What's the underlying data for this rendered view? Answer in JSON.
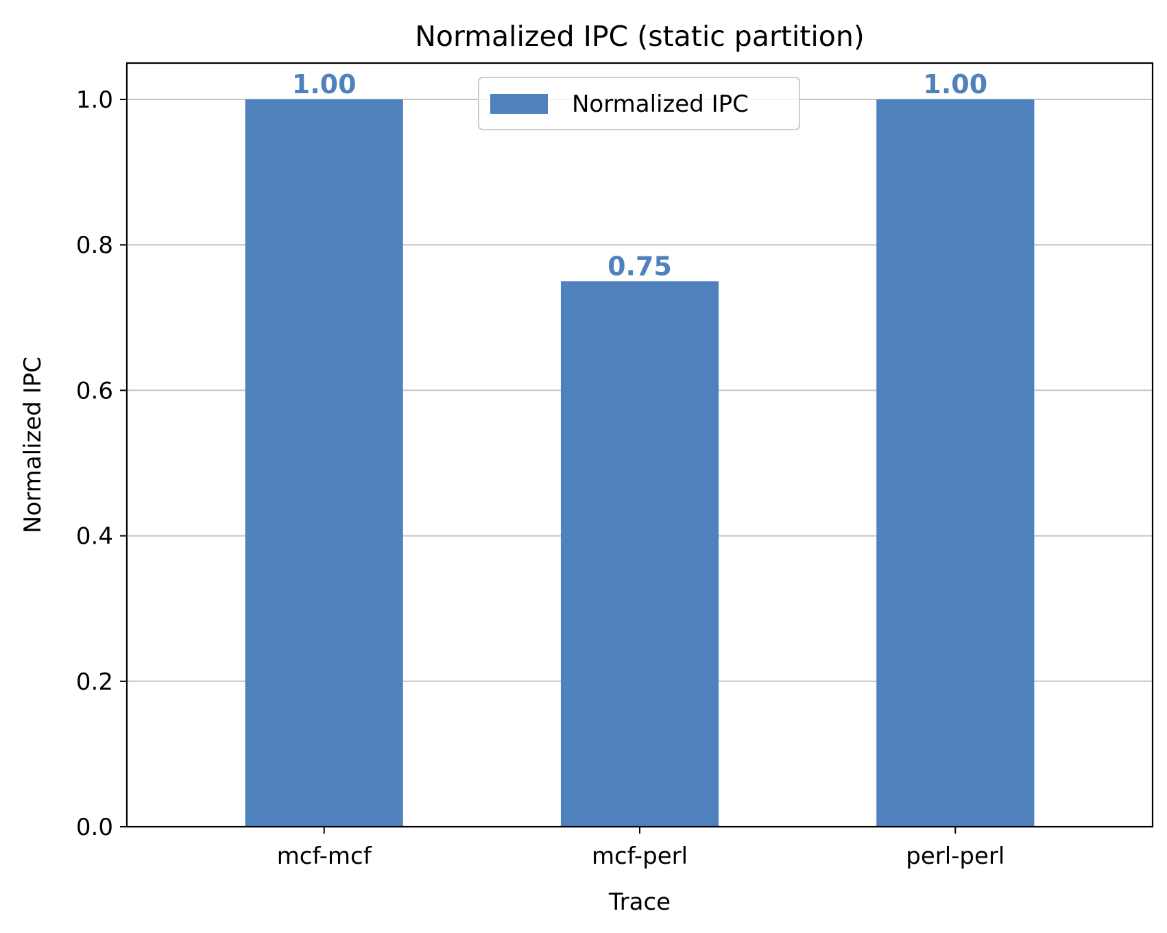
{
  "chart_data": {
    "type": "bar",
    "title": "Normalized IPC (static partition)",
    "xlabel": "Trace",
    "ylabel": "Normalized IPC",
    "categories": [
      "mcf-mcf",
      "mcf-perl",
      "perl-perl"
    ],
    "series": [
      {
        "name": "Normalized IPC",
        "values": [
          1.0,
          0.75,
          1.0
        ],
        "color": "#4f81bd"
      }
    ],
    "data_labels": [
      "1.00",
      "0.75",
      "1.00"
    ],
    "ylim": [
      0,
      1.05
    ],
    "yticks": [
      0.0,
      0.2,
      0.4,
      0.6,
      0.8,
      1.0
    ],
    "ytick_labels": [
      "0.0",
      "0.2",
      "0.4",
      "0.6",
      "0.8",
      "1.0"
    ],
    "grid": "horizontal",
    "legend_position": "top-center"
  }
}
